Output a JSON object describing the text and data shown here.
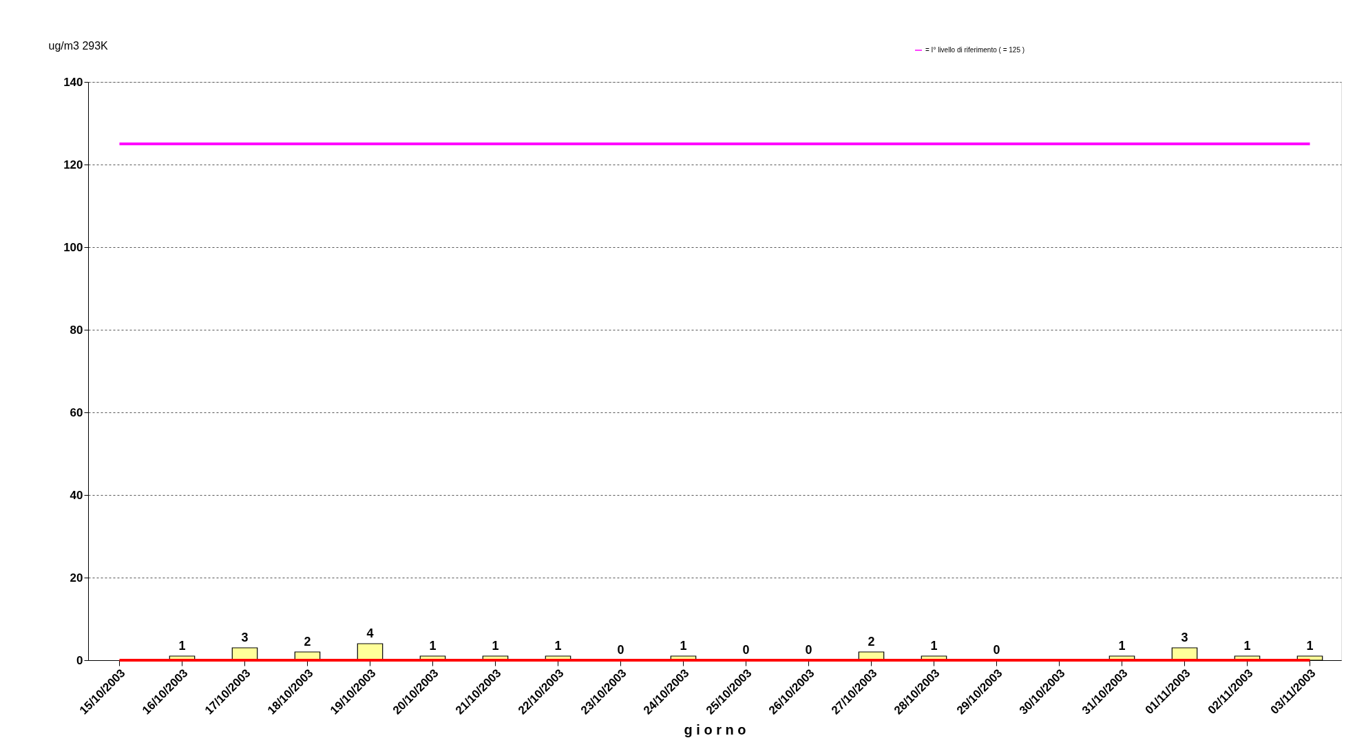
{
  "chart_data": {
    "type": "bar",
    "xlabel": "g i o r n o",
    "ylabel": "ug/m3 293K",
    "categories": [
      "15/10/2003",
      "16/10/2003",
      "17/10/2003",
      "18/10/2003",
      "19/10/2003",
      "20/10/2003",
      "21/10/2003",
      "22/10/2003",
      "23/10/2003",
      "24/10/2003",
      "25/10/2003",
      "26/10/2003",
      "27/10/2003",
      "28/10/2003",
      "29/10/2003",
      "30/10/2003",
      "31/10/2003",
      "01/11/2003",
      "02/11/2003",
      "03/11/2003"
    ],
    "series": [
      {
        "color": "#ffff99",
        "values": [
          null,
          1,
          3,
          2,
          4,
          1,
          1,
          1,
          0,
          1,
          0,
          0,
          2,
          1,
          0,
          null,
          1,
          3,
          1,
          1
        ],
        "value_labels": [
          null,
          "1",
          "3",
          "2",
          "4",
          "1",
          "1",
          "1",
          "0",
          "1",
          "0",
          "0",
          "2",
          "1",
          "0",
          null,
          "1",
          "3",
          "1",
          "1"
        ]
      },
      {
        "type": "line",
        "name": "= I° livello di riferimento ( = 125 )",
        "color": "#ff00ff",
        "values": [
          125,
          125,
          125,
          125,
          125,
          125,
          125,
          125,
          125,
          125,
          125,
          125,
          125,
          125,
          125,
          125,
          125,
          125,
          125,
          125
        ]
      },
      {
        "type": "line",
        "color": "#ff0000",
        "values": [
          0,
          0,
          0,
          0,
          0,
          0,
          0,
          0,
          0,
          0,
          0,
          0,
          0,
          0,
          0,
          0,
          0,
          0,
          0,
          0
        ]
      }
    ],
    "ylim": [
      0,
      140
    ],
    "yticks": [
      0,
      20,
      40,
      60,
      80,
      100,
      120,
      140
    ],
    "grid": "y",
    "legend": "top right"
  }
}
